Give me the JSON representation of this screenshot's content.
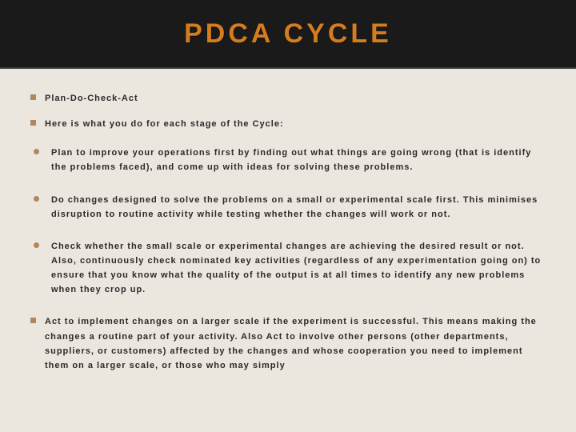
{
  "header": {
    "title": "PDCA CYCLE",
    "title_color": "#d47d1f",
    "bg_color": "#1a1a1a",
    "title_fontsize": 34,
    "letter_spacing": 4
  },
  "page": {
    "bg_color": "#ebe7df",
    "text_color": "#2a2a2a",
    "body_fontsize": 11,
    "body_letter_spacing": 1,
    "bullet_color": "#b0865a"
  },
  "intro": [
    "Plan-Do-Check-Act",
    "Here is what you do for each stage of the Cycle:"
  ],
  "items": [
    {
      "marker": "round",
      "text": "Plan to improve your operations first by finding out what things are going wrong (that is identify the problems faced), and come up with ideas for solving these problems."
    },
    {
      "marker": "round",
      "text": "Do changes designed to solve the problems on a small or experimental scale first. This minimises disruption to routine activity while testing whether the changes will work or not."
    },
    {
      "marker": "round",
      "text": "Check whether the small scale or experimental changes are achieving the desired result or not. Also, continuously check nominated key activities (regardless of any experimentation going on) to ensure that you know what the quality of the output is at all times to identify any new problems when they crop up."
    },
    {
      "marker": "square",
      "text": "Act to implement changes on a larger scale if the experiment is successful. This means making the changes a routine part of your activity. Also Act to involve other persons (other departments, suppliers, or customers) affected by the changes and whose cooperation you need to implement them on a larger scale, or those who may simply"
    }
  ]
}
